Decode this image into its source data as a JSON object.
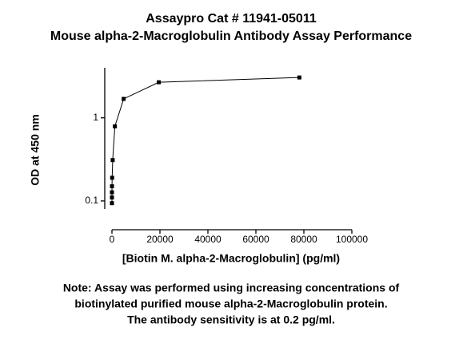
{
  "chart_data": {
    "type": "line",
    "title": [
      "Assaypro Cat # 11941-05011",
      "Mouse alpha-2-Macroglobulin Antibody Assay Performance"
    ],
    "x_label": "[Biotin M. alpha-2-Macroglobulin] (pg/ml)",
    "y_label": "OD at 450 nm",
    "note": [
      "Note: Assay was performed using increasing concentrations of",
      "biotinylated purified mouse alpha-2-Macroglobulin protein.",
      "The antibody sensitivity is at 0.2 pg/ml."
    ],
    "x": [
      0.3,
      1.2,
      4.8,
      19,
      76,
      305,
      1221,
      4883,
      19531,
      78125
    ],
    "series": [
      {
        "color": "#000000",
        "values": [
          0.094,
          0.11,
          0.127,
          0.15,
          0.19,
          0.31,
          0.79,
          1.69,
          2.68,
          3.06
        ]
      }
    ],
    "xlim": [
      0,
      100000
    ],
    "xticks": [
      0,
      20000,
      40000,
      60000,
      80000,
      100000
    ],
    "ylim": [
      0.08,
      4
    ],
    "yticks": [
      0.1,
      1
    ],
    "y_log": true,
    "grid": false
  }
}
